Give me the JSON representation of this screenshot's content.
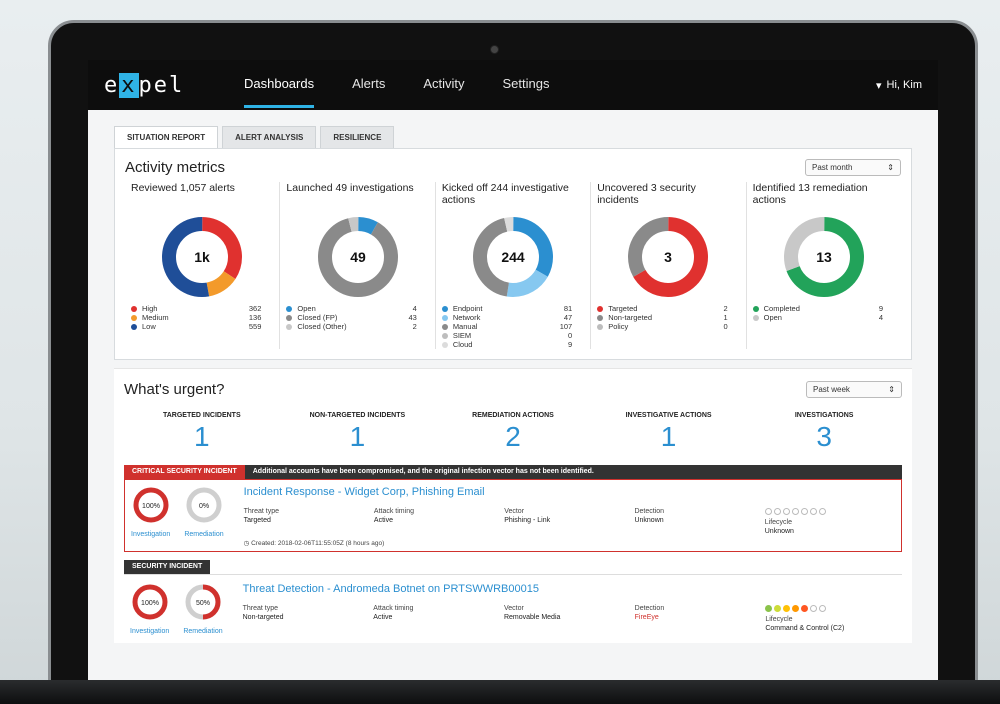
{
  "nav": {
    "logo": "expel",
    "items": [
      "Dashboards",
      "Alerts",
      "Activity",
      "Settings"
    ],
    "active": 0,
    "user": "Hi, Kim"
  },
  "tabs": [
    "SITUATION REPORT",
    "ALERT ANALYSIS",
    "RESILIENCE"
  ],
  "metrics": {
    "title": "Activity metrics",
    "period": "Past month",
    "cards": [
      {
        "title": "Reviewed 1,057 alerts",
        "center": "1k",
        "legend": [
          {
            "label": "High",
            "value": "362",
            "color": "#e0312f"
          },
          {
            "label": "Medium",
            "value": "136",
            "color": "#f39a2b"
          },
          {
            "label": "Low",
            "value": "559",
            "color": "#1f4e98"
          }
        ]
      },
      {
        "title": "Launched 49 investigations",
        "center": "49",
        "legend": [
          {
            "label": "Open",
            "value": "4",
            "color": "#2b8fd0"
          },
          {
            "label": "Closed (FP)",
            "value": "43",
            "color": "#8a8a8a"
          },
          {
            "label": "Closed (Other)",
            "value": "2",
            "color": "#c8c8c8"
          }
        ]
      },
      {
        "title": "Kicked off 244 investigative actions",
        "center": "244",
        "legend": [
          {
            "label": "Endpoint",
            "value": "81",
            "color": "#2b8fd0"
          },
          {
            "label": "Network",
            "value": "47",
            "color": "#86c8f0"
          },
          {
            "label": "Manual",
            "value": "107",
            "color": "#8a8a8a"
          },
          {
            "label": "SIEM",
            "value": "0",
            "color": "#bdbdbd"
          },
          {
            "label": "Cloud",
            "value": "9",
            "color": "#dcdcdc"
          }
        ]
      },
      {
        "title": "Uncovered 3 security incidents",
        "center": "3",
        "legend": [
          {
            "label": "Targeted",
            "value": "2",
            "color": "#e0312f"
          },
          {
            "label": "Non-targeted",
            "value": "1",
            "color": "#8a8a8a"
          },
          {
            "label": "Policy",
            "value": "0",
            "color": "#bdbdbd"
          }
        ]
      },
      {
        "title": "Identified 13 remediation actions",
        "center": "13",
        "legend": [
          {
            "label": "Completed",
            "value": "9",
            "color": "#22a35a"
          },
          {
            "label": "Open",
            "value": "4",
            "color": "#c8c8c8"
          }
        ]
      }
    ]
  },
  "urgent": {
    "title": "What's urgent?",
    "period": "Past week",
    "stats": [
      {
        "label": "TARGETED INCIDENTS",
        "value": "1"
      },
      {
        "label": "NON-TARGETED INCIDENTS",
        "value": "1"
      },
      {
        "label": "REMEDIATION ACTIONS",
        "value": "2"
      },
      {
        "label": "INVESTIGATIVE ACTIONS",
        "value": "1"
      },
      {
        "label": "INVESTIGATIONS",
        "value": "3"
      }
    ]
  },
  "incident1": {
    "tag": "CRITICAL SECURITY INCIDENT",
    "message": "Additional accounts have been compromised, and the original infection vector has not been identified.",
    "investigation_pct": "100%",
    "remediation_pct": "0%",
    "investigation_label": "Investigation",
    "remediation_label": "Remediation",
    "title": "Incident Response - Widget Corp, Phishing Email",
    "fields": [
      {
        "label": "Threat type",
        "value": "Targeted"
      },
      {
        "label": "Attack timing",
        "value": "Active"
      },
      {
        "label": "Vector",
        "value": "Phishing - Link"
      },
      {
        "label": "Detection",
        "value": "Unknown"
      },
      {
        "label": "Lifecycle",
        "value": "Unknown"
      }
    ],
    "created": "Created: 2018-02-06T11:55:05Z (8 hours ago)"
  },
  "incident2": {
    "tag": "SECURITY INCIDENT",
    "investigation_pct": "100%",
    "remediation_pct": "50%",
    "investigation_label": "Investigation",
    "remediation_label": "Remediation",
    "title": "Threat Detection - Andromeda Botnet on PRTSWWRB00015",
    "fields": [
      {
        "label": "Threat type",
        "value": "Non-targeted"
      },
      {
        "label": "Attack timing",
        "value": "Active"
      },
      {
        "label": "Vector",
        "value": "Removable Media"
      },
      {
        "label": "Detection",
        "value": "FireEye"
      },
      {
        "label": "Lifecycle",
        "value": "Command & Control (C2)"
      }
    ]
  }
}
